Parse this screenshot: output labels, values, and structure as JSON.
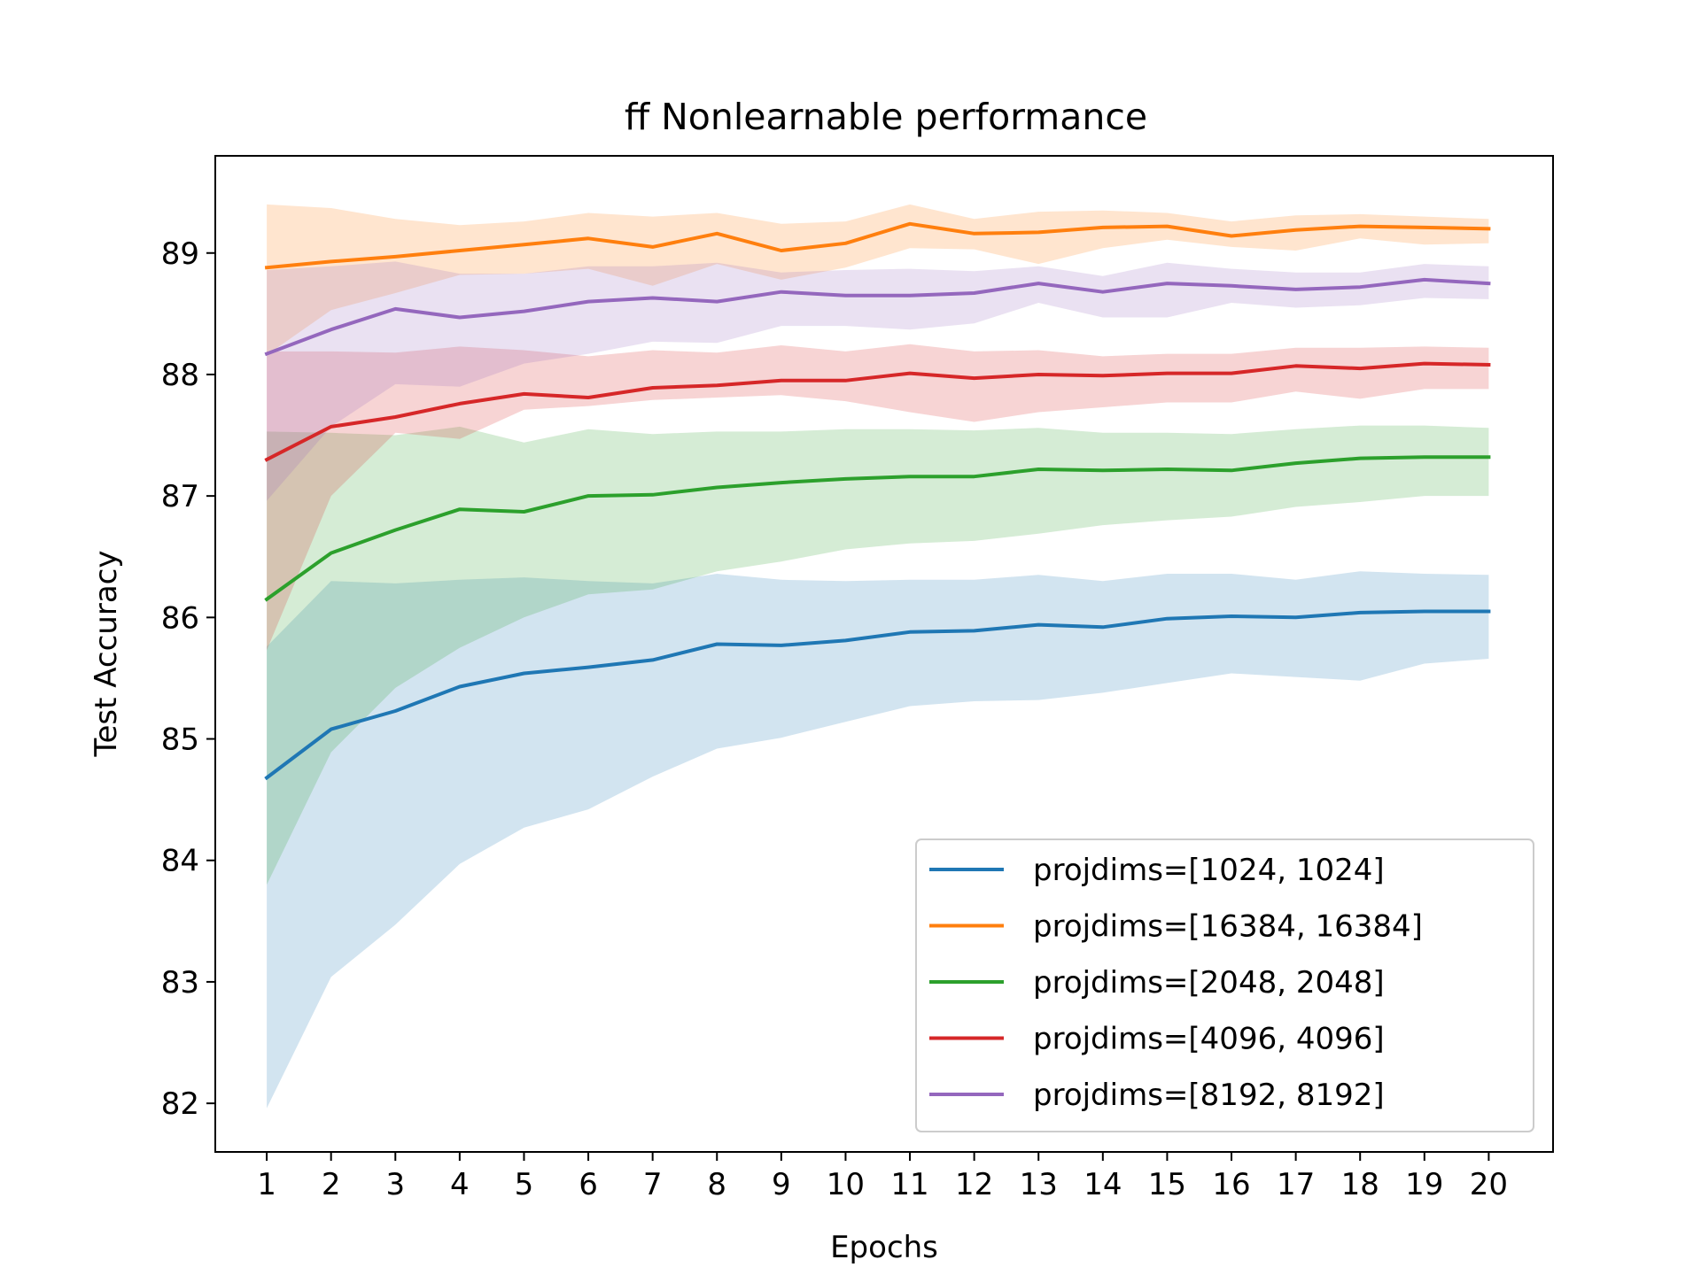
{
  "chart_data": {
    "type": "line",
    "title": "ff Nonlearnable performance",
    "xlabel": "Epochs",
    "ylabel": "Test Accuracy",
    "x": [
      1,
      2,
      3,
      4,
      5,
      6,
      7,
      8,
      9,
      10,
      11,
      12,
      13,
      14,
      15,
      16,
      17,
      18,
      19,
      20
    ],
    "xlim": [
      0.2,
      21.0
    ],
    "ylim": [
      81.6,
      89.8
    ],
    "yticks": [
      82,
      83,
      84,
      85,
      86,
      87,
      88,
      89
    ],
    "legend_position": "lower-right",
    "grid": false,
    "series": [
      {
        "name": "projdims=[1024, 1024]",
        "color": "#1f77b4",
        "values": [
          84.68,
          85.08,
          85.23,
          85.43,
          85.54,
          85.59,
          85.65,
          85.78,
          85.77,
          85.81,
          85.88,
          85.89,
          85.94,
          85.92,
          85.99,
          86.01,
          86.0,
          86.04,
          86.05,
          86.05
        ],
        "upper": [
          85.76,
          86.3,
          86.28,
          86.31,
          86.33,
          86.3,
          86.28,
          86.36,
          86.31,
          86.3,
          86.31,
          86.31,
          86.35,
          86.3,
          86.36,
          86.36,
          86.31,
          86.38,
          86.36,
          86.35
        ],
        "lower": [
          81.96,
          83.04,
          83.47,
          83.97,
          84.27,
          84.42,
          84.69,
          84.92,
          85.01,
          85.14,
          85.27,
          85.31,
          85.32,
          85.38,
          85.46,
          85.54,
          85.51,
          85.48,
          85.62,
          85.66
        ]
      },
      {
        "name": "projdims=[16384, 16384]",
        "color": "#ff7f0e",
        "values": [
          88.88,
          88.93,
          88.97,
          89.02,
          89.07,
          89.12,
          89.05,
          89.16,
          89.02,
          89.08,
          89.24,
          89.16,
          89.17,
          89.21,
          89.22,
          89.14,
          89.19,
          89.22,
          89.21,
          89.2
        ],
        "upper": [
          89.4,
          89.37,
          89.28,
          89.23,
          89.26,
          89.33,
          89.3,
          89.33,
          89.24,
          89.26,
          89.4,
          89.28,
          89.34,
          89.35,
          89.33,
          89.26,
          89.31,
          89.32,
          89.3,
          89.28
        ],
        "lower": [
          88.16,
          88.53,
          88.67,
          88.82,
          88.83,
          88.87,
          88.73,
          88.91,
          88.78,
          88.88,
          89.04,
          89.03,
          88.91,
          89.04,
          89.11,
          89.05,
          89.02,
          89.12,
          89.07,
          89.08
        ]
      },
      {
        "name": "projdims=[2048, 2048]",
        "color": "#2ca02c",
        "values": [
          86.15,
          86.53,
          86.72,
          86.89,
          86.87,
          87.0,
          87.01,
          87.07,
          87.11,
          87.14,
          87.16,
          87.16,
          87.22,
          87.21,
          87.22,
          87.21,
          87.27,
          87.31,
          87.32,
          87.32
        ],
        "upper": [
          87.53,
          87.52,
          87.5,
          87.57,
          87.44,
          87.55,
          87.51,
          87.53,
          87.53,
          87.55,
          87.55,
          87.54,
          87.56,
          87.52,
          87.52,
          87.51,
          87.55,
          87.58,
          87.58,
          87.56
        ],
        "lower": [
          83.8,
          84.89,
          85.42,
          85.75,
          86.0,
          86.19,
          86.23,
          86.38,
          86.46,
          86.56,
          86.61,
          86.63,
          86.69,
          86.76,
          86.8,
          86.83,
          86.91,
          86.95,
          87.0,
          87.0
        ]
      },
      {
        "name": "projdims=[4096, 4096]",
        "color": "#d62728",
        "values": [
          87.3,
          87.57,
          87.65,
          87.76,
          87.84,
          87.81,
          87.89,
          87.91,
          87.95,
          87.95,
          88.01,
          87.97,
          88.0,
          87.99,
          88.01,
          88.01,
          88.07,
          88.05,
          88.09,
          88.08
        ],
        "upper": [
          88.19,
          88.19,
          88.18,
          88.23,
          88.2,
          88.15,
          88.2,
          88.18,
          88.24,
          88.19,
          88.25,
          88.19,
          88.2,
          88.15,
          88.17,
          88.17,
          88.22,
          88.22,
          88.23,
          88.22
        ],
        "lower": [
          85.73,
          87.0,
          87.52,
          87.47,
          87.71,
          87.74,
          87.79,
          87.81,
          87.83,
          87.78,
          87.69,
          87.61,
          87.69,
          87.73,
          87.77,
          87.77,
          87.86,
          87.8,
          87.88,
          87.88
        ]
      },
      {
        "name": "projdims=[8192, 8192]",
        "color": "#9467bd",
        "values": [
          88.17,
          88.37,
          88.54,
          88.47,
          88.52,
          88.6,
          88.63,
          88.6,
          88.68,
          88.65,
          88.65,
          88.67,
          88.75,
          88.68,
          88.75,
          88.73,
          88.7,
          88.72,
          88.78,
          88.75
        ],
        "upper": [
          88.86,
          88.89,
          88.93,
          88.83,
          88.83,
          88.89,
          88.89,
          88.92,
          88.84,
          88.86,
          88.87,
          88.85,
          88.89,
          88.81,
          88.92,
          88.87,
          88.84,
          88.84,
          88.91,
          88.89
        ],
        "lower": [
          86.96,
          87.57,
          87.92,
          87.9,
          88.09,
          88.17,
          88.27,
          88.26,
          88.4,
          88.4,
          88.37,
          88.42,
          88.59,
          88.47,
          88.47,
          88.59,
          88.55,
          88.57,
          88.63,
          88.62
        ]
      }
    ]
  }
}
